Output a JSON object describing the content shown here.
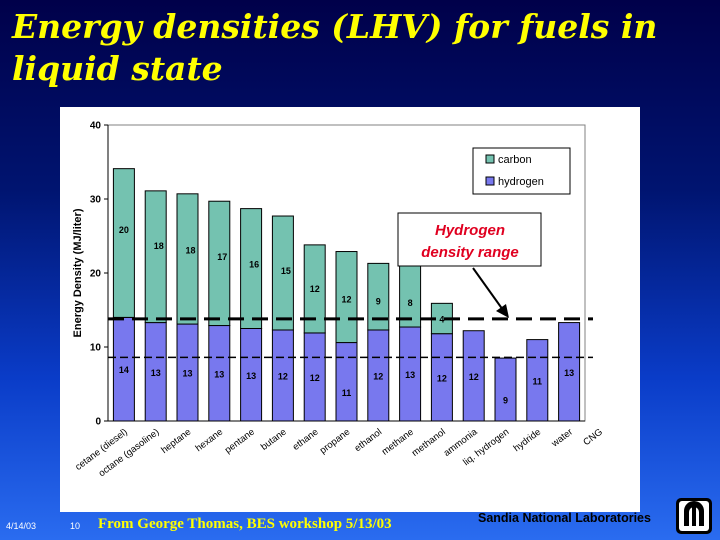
{
  "slide": {
    "title": "Energy densities (LHV) for fuels in liquid state",
    "footer_date": "4/14/03",
    "footer_page": "10",
    "footer_credit": "From George Thomas, BES workshop 5/13/03",
    "org": "Sandia National Laboratories",
    "colors": {
      "title": "#ffff00",
      "carbon": "#74c2b0",
      "hydrogen": "#7878ee"
    },
    "logo_icon": "sandia-logo-icon"
  },
  "chart_data": {
    "type": "bar",
    "stacked": true,
    "categories": [
      "cetane (diesel)",
      "octane (gasoline)",
      "heptane",
      "hexane",
      "pentane",
      "butane",
      "ethane",
      "propane",
      "ethanol",
      "methane",
      "methanol",
      "ammonia",
      "liq. hydrogen",
      "hydride",
      "water"
    ],
    "series": [
      {
        "name": "hydrogen",
        "values": [
          14,
          13.3,
          13.1,
          12.9,
          12.5,
          12.3,
          11.9,
          10.6,
          12.3,
          12.7,
          11.8,
          12.2,
          8.5,
          11,
          13.3
        ],
        "labels": [
          "14",
          "13",
          "13",
          "13",
          "13",
          "12",
          "12",
          "11",
          "12",
          "13",
          "12",
          "12",
          "9",
          "11",
          "13"
        ]
      },
      {
        "name": "carbon",
        "values": [
          20.1,
          17.8,
          17.6,
          16.8,
          16.2,
          15.4,
          11.9,
          12.3,
          9,
          8.3,
          4.1,
          0,
          0,
          0,
          0
        ],
        "labels": [
          "20",
          "18",
          "18",
          "17",
          "16",
          "15",
          "12",
          "12",
          "9",
          "8",
          "4",
          "",
          "",
          "",
          ""
        ]
      }
    ],
    "ylabel": "Energy Density (MJ/liter)",
    "ylim": [
      0,
      40
    ],
    "yticks": [
      "0",
      "10",
      "20",
      "30",
      "40"
    ],
    "grid": false,
    "legend": "top-right",
    "extra_label": "CNG",
    "reference_lines": [
      13.8,
      8.6
    ],
    "annotation": {
      "lines": [
        "Hydrogen",
        "density range"
      ],
      "color": "#e00020"
    }
  }
}
